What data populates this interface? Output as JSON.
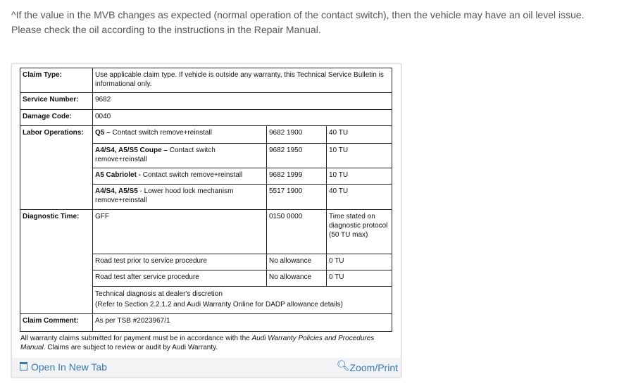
{
  "intro": "^If the value in the MVB changes as expected (normal operation of the contact switch), then the vehicle may have an oil level issue. Please check the oil according to the instructions in the Repair Manual.",
  "table": {
    "claim_type": {
      "label": "Claim Type:",
      "value": "Use applicable claim type. If vehicle is outside any warranty, this Technical Service Bulletin is informational only."
    },
    "service_number": {
      "label": "Service Number:",
      "value": "9682"
    },
    "damage_code": {
      "label": "Damage Code:",
      "value": "0040"
    },
    "labor": {
      "label": "Labor Operations:",
      "rows": [
        {
          "model": "Q5 –",
          "desc": " Contact switch remove+reinstall",
          "code": "9682 1900",
          "tu": "40 TU"
        },
        {
          "model": "A4/S4, A5/S5 Coupe –",
          "desc": " Contact switch remove+reinstall",
          "code": "9682 1950",
          "tu": "10 TU"
        },
        {
          "model": "A5 Cabriolet -",
          "desc": " Contact switch remove+reinstall",
          "code": "9682 1999",
          "tu": "10 TU"
        },
        {
          "model": "A4/S4, A5/S5",
          "desc": " - Lower hood lock mechanism remove+reinstall",
          "code": "5517 1900",
          "tu": "40 TU"
        }
      ]
    },
    "diagnostic": {
      "label": "Diagnostic Time:",
      "rows": [
        {
          "desc": "GFF",
          "code": "0150 0000",
          "tu": "Time stated on diagnostic protocol (50 TU max)"
        },
        {
          "desc": "Road test prior to service procedure",
          "code": "No allowance",
          "tu": "0 TU"
        },
        {
          "desc": "Road test after service procedure",
          "code": "No allowance",
          "tu": "0 TU"
        }
      ],
      "note1": "Technical diagnosis at dealer's discretion",
      "note2": "(Refer to Section 2.2.1.2 and Audi Warranty Online for DADP allowance details)"
    },
    "claim_comment": {
      "label": "Claim Comment:",
      "value": "As per TSB #2023967/1"
    }
  },
  "note": {
    "pre": "All warranty claims submitted for payment must be in accordance with the ",
    "italic": "Audi Warranty Policies and Procedures Manual",
    "post": ". Claims are subject to review or audit by Audi Warranty."
  },
  "footer": {
    "open": "Open In New Tab",
    "zoom": "Zoom/Print",
    "open_icon": "open-new-tab-icon",
    "zoom_icon": "zoom-in-icon"
  }
}
